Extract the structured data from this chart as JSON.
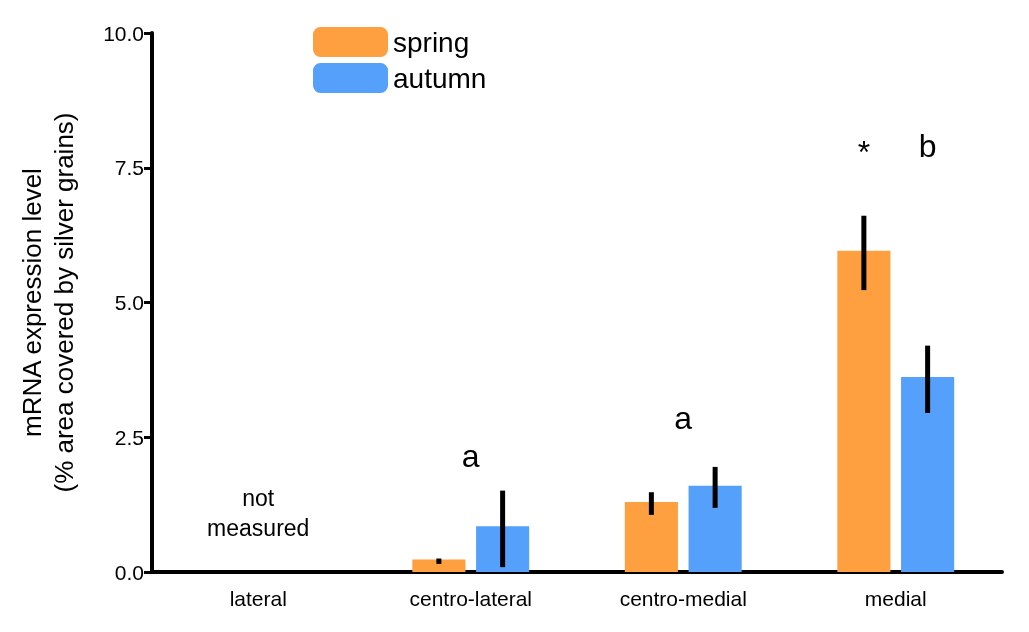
{
  "chart_data": {
    "type": "bar",
    "ylabel": "mRNA expression level\n(% area covered by silver grains)",
    "categories": [
      "lateral",
      "centro-lateral",
      "centro-medial",
      "medial"
    ],
    "series": [
      {
        "name": "spring",
        "color": "#ffa040",
        "values": [
          null,
          0.23,
          1.3,
          5.96
        ],
        "errors": [
          null,
          [
            0.15,
            0.25
          ],
          [
            1.06,
            1.48
          ],
          [
            5.23,
            6.61
          ]
        ]
      },
      {
        "name": "autumn",
        "color": "#55a0fa",
        "values": [
          null,
          0.85,
          1.6,
          3.62
        ],
        "errors": [
          null,
          [
            0.09,
            1.51
          ],
          [
            1.19,
            1.95
          ],
          [
            2.95,
            4.2
          ]
        ]
      }
    ],
    "ylim": [
      0,
      10
    ],
    "yticks": [
      {
        "value": 0,
        "label": "0.0"
      },
      {
        "value": 2.5,
        "label": "2.5"
      },
      {
        "value": 5,
        "label": "5.0"
      },
      {
        "value": 7.5,
        "label": "7.5"
      },
      {
        "value": 10,
        "label": "10.0"
      }
    ],
    "grid": false,
    "legend": "top left",
    "annotations": [
      "not\nmeasured",
      "a",
      "a",
      "*",
      "b"
    ]
  }
}
